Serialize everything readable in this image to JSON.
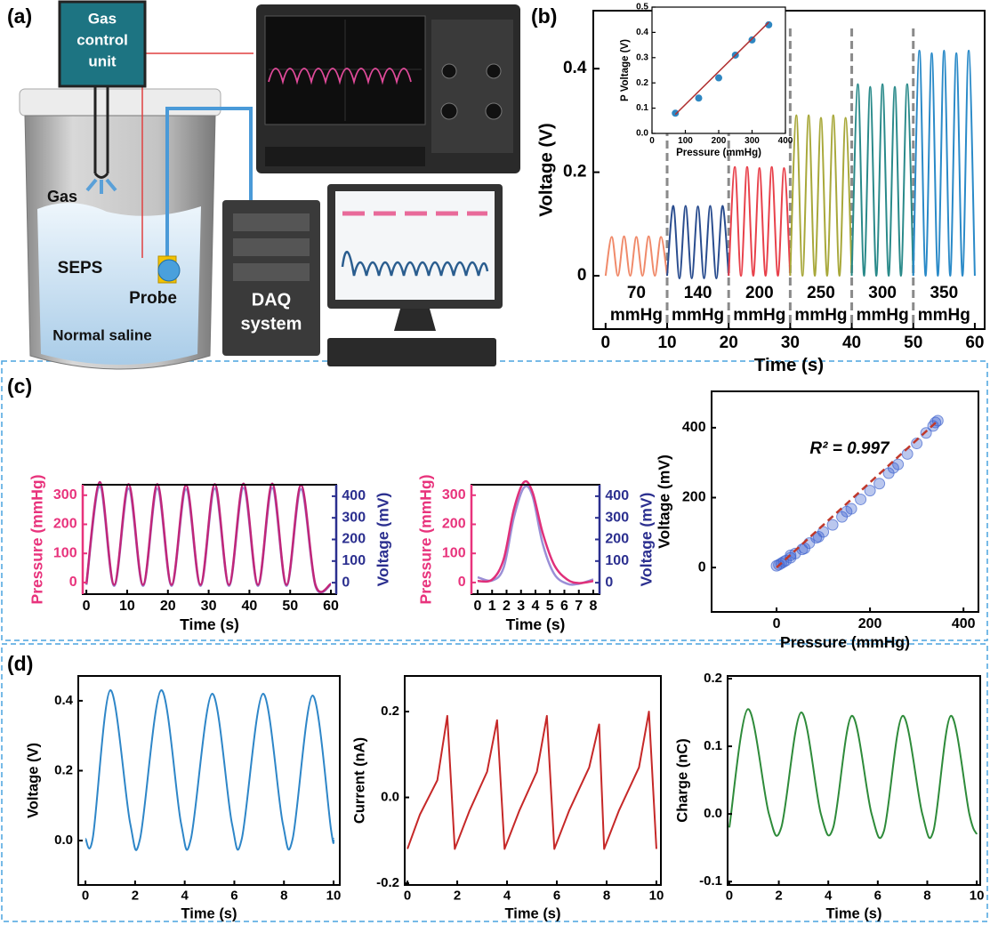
{
  "panel_labels": [
    "(a)",
    "(b)",
    "(c)",
    "(d)"
  ],
  "illustration": {
    "gas_control_unit": [
      "Gas",
      "control",
      "unit"
    ],
    "gas": "Gas",
    "seps": "SEPS",
    "probe": "Probe",
    "saline": "Normal saline",
    "daq": [
      "DAQ",
      "system"
    ]
  },
  "chart_data": [
    {
      "type": "line",
      "xlabel": "Time (s)",
      "ylabel": "Voltage (V)",
      "xlim": [
        -2,
        61.6
      ],
      "xticks": [
        0,
        10,
        20,
        30,
        40,
        50,
        60
      ],
      "ylim": [
        -0.103,
        0.512
      ],
      "yticks": [
        0,
        0.2,
        0.4
      ],
      "dividers": [
        10,
        20,
        30,
        40,
        50
      ],
      "segment_labels": [
        {
          "text": "70",
          "unit": "mmHg"
        },
        {
          "text": "140",
          "unit": "mmHg"
        },
        {
          "text": "200",
          "unit": "mmHg"
        },
        {
          "text": "250",
          "unit": "mmHg"
        },
        {
          "text": "300",
          "unit": "mmHg"
        },
        {
          "text": "350",
          "unit": "mmHg"
        }
      ],
      "series": [
        {
          "color": "#f08a6a",
          "x": [
            0,
            1,
            2,
            3,
            4,
            5,
            6,
            7,
            8,
            9,
            10
          ],
          "values": [
            0,
            0.075,
            0,
            0.076,
            0,
            0.075,
            0,
            0.076,
            0,
            0.075,
            0
          ]
        },
        {
          "color": "#2a4d8f",
          "x": [
            10,
            11,
            12,
            13,
            14,
            15,
            16,
            17,
            18,
            19,
            20
          ],
          "values": [
            0,
            0.135,
            -0.005,
            0.135,
            -0.005,
            0.134,
            -0.005,
            0.135,
            -0.005,
            0.135,
            0
          ]
        },
        {
          "color": "#e8414b",
          "x": [
            20,
            21,
            22,
            23,
            24,
            25,
            26,
            27,
            28,
            29,
            30
          ],
          "values": [
            0,
            0.21,
            0,
            0.21,
            0,
            0.208,
            0,
            0.21,
            0,
            0.208,
            0
          ]
        },
        {
          "color": "#a8a83a",
          "x": [
            30,
            31,
            32,
            33,
            34,
            35,
            36,
            37,
            38,
            39,
            40
          ],
          "values": [
            0,
            0.31,
            0,
            0.31,
            0,
            0.305,
            0,
            0.31,
            0,
            0.305,
            0
          ]
        },
        {
          "color": "#2a8a8a",
          "x": [
            40,
            41,
            42,
            43,
            44,
            45,
            46,
            47,
            48,
            49,
            50
          ],
          "values": [
            0,
            0.37,
            0,
            0.365,
            0,
            0.37,
            0,
            0.365,
            0,
            0.37,
            0
          ]
        },
        {
          "color": "#2a8ac8",
          "x": [
            50,
            51,
            52,
            53,
            54,
            55,
            56,
            57,
            58,
            59,
            60
          ],
          "values": [
            0,
            0.435,
            0,
            0.43,
            0,
            0.435,
            0,
            0.43,
            0,
            0.435,
            0
          ]
        }
      ]
    },
    {
      "type": "scatter",
      "xlabel": "Pressure (mmHg)",
      "ylabel": "P Voltage (V)",
      "xlim": [
        0,
        400
      ],
      "xticks": [
        0,
        100,
        200,
        300,
        400
      ],
      "ylim": [
        0,
        0.5
      ],
      "yticks": [
        {
          "value": 0,
          "label": "0.0"
        },
        0.1,
        0.2,
        0.3,
        0.4,
        0.5
      ],
      "series": [
        {
          "color": "#2e86c1",
          "x": [
            70,
            140,
            200,
            250,
            300,
            350
          ],
          "values": [
            0.08,
            0.14,
            0.22,
            0.31,
            0.37,
            0.43
          ]
        }
      ],
      "fit": {
        "color": "#b03030",
        "x": [
          70,
          350
        ],
        "values": [
          0.075,
          0.44
        ]
      }
    },
    {
      "type": "line",
      "xlabel": "Time (s)",
      "ylabel": "Pressure (mmHg)",
      "y2label": "Voltage (mV)",
      "y_color": "#e8337c",
      "y2_color": "#2b2f8f",
      "xlim": [
        -0.9,
        61.3
      ],
      "xticks": [
        0,
        10,
        20,
        30,
        40,
        50,
        60
      ],
      "ylim": [
        -40,
        336
      ],
      "yticks": [
        0,
        100,
        200,
        300
      ],
      "y2lim": [
        -53,
        453
      ],
      "y2ticks": [
        0,
        100,
        200,
        300,
        400
      ],
      "x": [
        0,
        3.3,
        6.8,
        10.35,
        13.9,
        17.4,
        20.9,
        24.45,
        28,
        31.5,
        35,
        38.55,
        42.1,
        45.6,
        49.1,
        52.65,
        56.2,
        60
      ],
      "series": [
        {
          "color": "#9a8fd6",
          "axis": "y2",
          "values": [
            -10,
            445,
            -15,
            435,
            -15,
            435,
            -15,
            432,
            -15,
            435,
            -15,
            438,
            -15,
            438,
            -15,
            432,
            -15,
            -10
          ]
        },
        {
          "color": "#c0267a",
          "values": [
            -5,
            345,
            -8,
            338,
            -8,
            338,
            -8,
            335,
            -8,
            338,
            -8,
            340,
            -8,
            340,
            -8,
            335,
            -8,
            -5
          ]
        }
      ]
    },
    {
      "type": "line",
      "xlabel": "Time (s)",
      "ylabel": "Pressure (mmHg)",
      "y2label": "Voltage (mV)",
      "y_color": "#e8337c",
      "y2_color": "#2b2f8f",
      "xlim": [
        -0.43,
        8.43
      ],
      "xticks": [
        0,
        1,
        2,
        3,
        4,
        5,
        6,
        7,
        8
      ],
      "ylim": [
        -40,
        336
      ],
      "yticks": [
        0,
        100,
        200,
        300
      ],
      "y2lim": [
        -53,
        453
      ],
      "y2ticks": [
        0,
        100,
        200,
        300,
        400
      ],
      "x": [
        0,
        1,
        1.8,
        2.5,
        3.2,
        3.8,
        4.5,
        5.3,
        6.2,
        7,
        8
      ],
      "series": [
        {
          "color": "#9a8fd6",
          "axis": "y2",
          "values": [
            25,
            10,
            70,
            300,
            440,
            400,
            180,
            40,
            -5,
            -5,
            15
          ]
        },
        {
          "color": "#e0307a",
          "values": [
            5,
            10,
            80,
            250,
            345,
            310,
            170,
            60,
            10,
            -2,
            5
          ]
        }
      ]
    },
    {
      "type": "scatter",
      "xlabel": "Pressure (mmHg)",
      "ylabel": "Voltage (mV)",
      "annotation": "R² = 0.997",
      "point_opacity": 0.35,
      "xlim": [
        -139,
        432
      ],
      "xticks": [
        0,
        200,
        400
      ],
      "ylim": [
        -127,
        504
      ],
      "yticks": [
        0,
        200,
        400
      ],
      "series": [
        {
          "color": "#3a5fcd",
          "x": [
            0,
            5,
            10,
            15,
            20,
            30,
            40,
            55,
            70,
            85,
            100,
            120,
            140,
            160,
            180,
            200,
            220,
            240,
            260,
            280,
            300,
            320,
            335,
            345,
            30,
            60,
            90,
            150,
            250,
            340
          ],
          "values": [
            5,
            8,
            12,
            16,
            20,
            28,
            40,
            52,
            70,
            85,
            102,
            122,
            145,
            168,
            195,
            220,
            240,
            270,
            295,
            325,
            355,
            385,
            405,
            420,
            35,
            55,
            88,
            160,
            285,
            415
          ]
        }
      ],
      "fit": {
        "color": "#c0392b",
        "dashed": true,
        "x": [
          0,
          345
        ],
        "values": [
          0,
          420
        ]
      }
    },
    {
      "type": "line",
      "xlabel": "Time (s)",
      "ylabel": "Voltage (V)",
      "xlim": [
        -0.29,
        10.25
      ],
      "xticks": [
        0,
        2,
        4,
        6,
        8,
        10
      ],
      "ylim": [
        -0.127,
        0.471
      ],
      "yticks": [
        {
          "value": 0,
          "label": "0.0"
        },
        0.2,
        0.4
      ],
      "x": [
        0,
        0.3,
        1.0,
        1.8,
        2.2,
        3.05,
        3.85,
        4.25,
        5.1,
        5.9,
        6.3,
        7.15,
        7.95,
        8.35,
        9.15,
        9.9,
        10
      ],
      "series": [
        {
          "color": "#2e86c8",
          "values": [
            0.005,
            0.01,
            0.43,
            0.05,
            0.005,
            0.43,
            0.05,
            0.005,
            0.42,
            0.05,
            0.005,
            0.42,
            0.05,
            0.005,
            0.415,
            0.03,
            0.005
          ]
        }
      ]
    },
    {
      "type": "line",
      "smooth": false,
      "xlabel": "Time (s)",
      "ylabel": "Current (nA)",
      "xlim": [
        -0.11,
        10.18
      ],
      "xticks": [
        0,
        2,
        4,
        6,
        8,
        10
      ],
      "ylim": [
        -0.204,
        0.283
      ],
      "yticks": [
        -0.2,
        {
          "value": 0,
          "label": "0.0"
        },
        0.2
      ],
      "x": [
        0,
        0.5,
        1.2,
        1.6,
        1.9,
        2.5,
        3.2,
        3.6,
        3.9,
        4.5,
        5.2,
        5.6,
        5.9,
        6.5,
        7.3,
        7.7,
        7.9,
        8.5,
        9.3,
        9.7,
        10
      ],
      "series": [
        {
          "color": "#c62828",
          "values": [
            -0.12,
            -0.04,
            0.04,
            0.19,
            -0.12,
            -0.03,
            0.06,
            0.18,
            -0.12,
            -0.03,
            0.06,
            0.19,
            -0.12,
            -0.03,
            0.07,
            0.17,
            -0.12,
            -0.03,
            0.07,
            0.2,
            -0.12
          ]
        }
      ]
    },
    {
      "type": "line",
      "xlabel": "Time (s)",
      "ylabel": "Charge (nC)",
      "xlim": [
        -0.07,
        10.14
      ],
      "xticks": [
        0,
        2,
        4,
        6,
        8,
        10
      ],
      "ylim": [
        -0.105,
        0.204
      ],
      "yticks": [
        -0.1,
        {
          "value": 0,
          "label": "0.0"
        },
        0.1,
        0.2
      ],
      "x": [
        0,
        0.75,
        1.6,
        2.1,
        2.9,
        3.7,
        4.2,
        4.95,
        5.75,
        6.25,
        7.0,
        7.8,
        8.25,
        8.95,
        9.7,
        10
      ],
      "series": [
        {
          "color": "#2e8b3a",
          "values": [
            -0.02,
            0.155,
            0.0,
            -0.02,
            0.15,
            0.0,
            -0.02,
            0.145,
            0.0,
            -0.025,
            0.145,
            0.0,
            -0.025,
            0.145,
            0.0,
            -0.03
          ]
        }
      ]
    }
  ]
}
